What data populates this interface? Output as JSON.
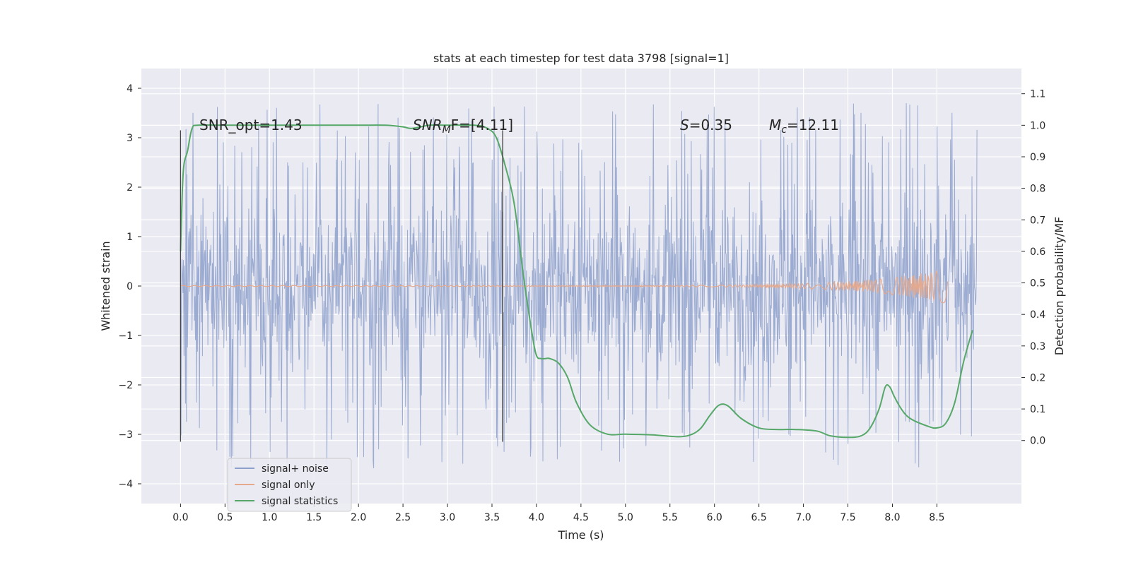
{
  "chart_data": {
    "type": "line",
    "title": "stats at each timestep for test data 3798 [signal=1]",
    "xlabel": "Time (s)",
    "ylabel": "Whitened strain",
    "ylabel_right": "Detection probability/MF",
    "xlim": [
      -0.44,
      9.45
    ],
    "ylim": [
      -4.4,
      4.4
    ],
    "ylim_right": [
      -0.2,
      1.18
    ],
    "x_ticks": [
      0.0,
      0.5,
      1.0,
      1.5,
      2.0,
      2.5,
      3.0,
      3.5,
      4.0,
      4.5,
      5.0,
      5.5,
      6.0,
      6.5,
      7.0,
      7.5,
      8.0,
      8.5
    ],
    "x_tick_labels": [
      "0.0",
      "0.5",
      "1.0",
      "1.5",
      "2.0",
      "2.5",
      "3.0",
      "3.5",
      "4.0",
      "4.5",
      "5.0",
      "5.5",
      "6.0",
      "6.5",
      "7.0",
      "7.5",
      "8.0",
      "8.5"
    ],
    "y_ticks": [
      -4,
      -3,
      -2,
      -1,
      0,
      1,
      2,
      3,
      4
    ],
    "y_tick_labels": [
      "−4",
      "−3",
      "−2",
      "−1",
      "0",
      "1",
      "2",
      "3",
      "4"
    ],
    "y_right_ticks": [
      0.0,
      0.1,
      0.2,
      0.3,
      0.4,
      0.5,
      0.6,
      0.7,
      0.8,
      0.9,
      1.0,
      1.1
    ],
    "y_right_tick_labels": [
      "0.0",
      "0.1",
      "0.2",
      "0.3",
      "0.4",
      "0.5",
      "0.6",
      "0.7",
      "0.8",
      "0.9",
      "1.0",
      "1.1"
    ],
    "series": [
      {
        "name": "signal+ noise",
        "axis": "left",
        "color": "#8da0cb",
        "description": "whitened noise-dominated strain, t = 0.0 to 8.95 s, roughly within ±3.8",
        "x_range": [
          0.0,
          8.95
        ],
        "envelope": 3.7
      },
      {
        "name": "signal only",
        "axis": "left",
        "color": "#e5a98d",
        "description": "chirp signal, near zero until growing amplitude up to ~0.35 at t ≈ 8.62 s",
        "x_range": [
          0.0,
          8.62
        ],
        "peak_amplitude": 0.35
      },
      {
        "name": "signal statistics",
        "axis": "right",
        "color": "#55a868",
        "x": [
          0.0,
          0.03,
          0.08,
          0.13,
          0.2,
          0.5,
          1.0,
          1.5,
          2.0,
          2.3,
          2.5,
          2.6,
          2.8,
          3.0,
          3.3,
          3.45,
          3.55,
          3.65,
          3.75,
          3.85,
          3.95,
          4.0,
          4.05,
          4.1,
          4.15,
          4.25,
          4.35,
          4.45,
          4.6,
          4.8,
          5.0,
          5.3,
          5.6,
          5.75,
          5.85,
          5.95,
          6.05,
          6.15,
          6.3,
          6.5,
          6.7,
          6.9,
          7.15,
          7.3,
          7.5,
          7.65,
          7.75,
          7.85,
          7.92,
          7.97,
          8.02,
          8.1,
          8.2,
          8.4,
          8.5,
          8.6,
          8.7,
          8.8,
          8.9
        ],
        "values": [
          0.6,
          0.85,
          0.92,
          0.99,
          1.0,
          1.0,
          1.0,
          1.0,
          1.0,
          1.0,
          0.995,
          0.99,
          1.0,
          1.0,
          1.0,
          0.99,
          0.96,
          0.87,
          0.75,
          0.53,
          0.34,
          0.27,
          0.26,
          0.26,
          0.26,
          0.245,
          0.2,
          0.12,
          0.05,
          0.02,
          0.02,
          0.018,
          0.012,
          0.02,
          0.04,
          0.08,
          0.112,
          0.11,
          0.07,
          0.04,
          0.035,
          0.035,
          0.03,
          0.015,
          0.01,
          0.015,
          0.04,
          0.1,
          0.17,
          0.17,
          0.14,
          0.1,
          0.07,
          0.045,
          0.04,
          0.055,
          0.12,
          0.25,
          0.35
        ]
      }
    ],
    "vertical_markers": [
      {
        "x": 0.0,
        "y_range": [
          -3.15,
          3.15
        ]
      },
      {
        "x": 3.62,
        "y_range": [
          -3.15,
          1.5
        ]
      },
      {
        "x": 3.62,
        "y_range": [
          -3.15,
          3.15
        ]
      }
    ],
    "annotations": {
      "snr_opt": "SNR_opt=1.43",
      "snr_mf_sym": "SNR",
      "snr_mf_sub": "M",
      "snr_mf_tail": "F=[4.11]",
      "s_sym": "S",
      "s_val": "=0.35",
      "mc_sym": "M",
      "mc_sub": "c",
      "mc_val": "=12.11"
    },
    "legend": {
      "placement": "lower-left",
      "entries": [
        "signal+ noise",
        "signal only",
        "signal statistics"
      ]
    }
  }
}
